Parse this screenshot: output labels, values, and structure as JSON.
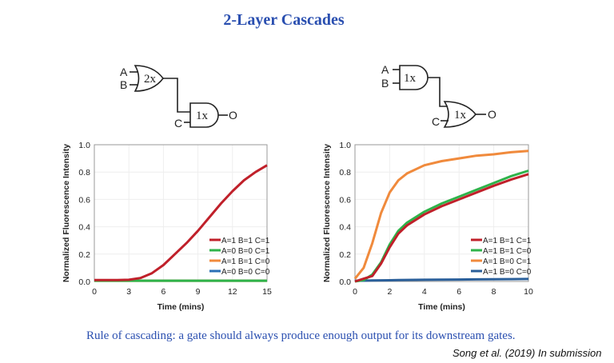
{
  "title": "2-Layer Cascades",
  "caption": "Rule of cascading: a gate should always produce enough output for its downstream gates.",
  "citation": "Song et al. (2019) In submission",
  "circuits": [
    {
      "gate1": {
        "type": "OR",
        "label": "2x",
        "inputs": [
          "A",
          "B"
        ]
      },
      "gate2": {
        "type": "AND",
        "label": "1x",
        "input": "C"
      },
      "output": "O"
    },
    {
      "gate1": {
        "type": "AND",
        "label": "1x",
        "inputs": [
          "A",
          "B"
        ]
      },
      "gate2": {
        "type": "OR",
        "label": "1x",
        "input": "C"
      },
      "output": "O"
    }
  ],
  "chart_data": [
    {
      "type": "line",
      "xlabel": "Time (mins)",
      "ylabel": "Normalized Fluorescence Intensity",
      "xlim": [
        0,
        15
      ],
      "ylim": [
        0,
        1
      ],
      "xticks": [
        "0",
        "3",
        "6",
        "9",
        "12",
        "15"
      ],
      "yticks": [
        "0.0",
        "0.2",
        "0.4",
        "0.6",
        "0.8",
        "1.0"
      ],
      "grid": true,
      "legend": "bottom-right",
      "x": [
        0,
        1,
        2,
        3,
        4,
        5,
        6,
        7,
        8,
        9,
        10,
        11,
        12,
        13,
        14,
        15
      ],
      "series": [
        {
          "name": "A=1 B=1 C=1",
          "color": "#c0202a",
          "values": [
            0.01,
            0.01,
            0.01,
            0.012,
            0.025,
            0.06,
            0.12,
            0.2,
            0.28,
            0.37,
            0.47,
            0.57,
            0.66,
            0.74,
            0.8,
            0.85
          ]
        },
        {
          "name": "A=0 B=0 C=1",
          "color": "#2eb34a",
          "values": [
            0.005,
            0.005,
            0.005,
            0.005,
            0.005,
            0.005,
            0.005,
            0.005,
            0.005,
            0.005,
            0.005,
            0.005,
            0.005,
            0.005,
            0.005,
            0.005
          ]
        },
        {
          "name": "A=1 B=1 C=0",
          "color": "#f08a3c",
          "values": [
            0.005,
            0.005,
            0.005,
            0.005,
            0.005,
            0.005,
            0.005,
            0.005,
            0.005,
            0.005,
            0.005,
            0.005,
            0.005,
            0.005,
            0.005,
            0.005
          ]
        },
        {
          "name": "A=0 B=0 C=0",
          "color": "#2a6fb5",
          "values": [
            0.006,
            0.006,
            0.006,
            0.006,
            0.006,
            0.006,
            0.006,
            0.006,
            0.006,
            0.006,
            0.006,
            0.006,
            0.006,
            0.006,
            0.006,
            0.006
          ]
        }
      ]
    },
    {
      "type": "line",
      "xlabel": "Time (mins)",
      "ylabel": "Normalized Fluorescence Intensity",
      "xlim": [
        0,
        10
      ],
      "ylim": [
        0,
        1
      ],
      "xticks": [
        "0",
        "2",
        "4",
        "6",
        "8",
        "10"
      ],
      "yticks": [
        "0.0",
        "0.2",
        "0.4",
        "0.6",
        "0.8",
        "1.0"
      ],
      "grid": true,
      "legend": "bottom-right",
      "x": [
        0,
        0.5,
        1,
        1.5,
        2,
        2.5,
        3,
        4,
        5,
        6,
        7,
        8,
        9,
        10
      ],
      "series": [
        {
          "name": "A=1 B=1 C=1",
          "color": "#c0202a",
          "values": [
            0,
            0.02,
            0.04,
            0.13,
            0.25,
            0.35,
            0.41,
            0.49,
            0.55,
            0.6,
            0.65,
            0.7,
            0.745,
            0.785
          ]
        },
        {
          "name": "A=1 B=1 C=0",
          "color": "#2eb34a",
          "values": [
            0,
            0.01,
            0.05,
            0.14,
            0.27,
            0.37,
            0.43,
            0.51,
            0.57,
            0.62,
            0.67,
            0.72,
            0.77,
            0.81
          ]
        },
        {
          "name": "A=1 B=0 C=1",
          "color": "#f08a3c",
          "values": [
            0.02,
            0.1,
            0.28,
            0.5,
            0.65,
            0.74,
            0.79,
            0.85,
            0.88,
            0.9,
            0.92,
            0.93,
            0.945,
            0.955
          ]
        },
        {
          "name": "A=1 B=0 C=0",
          "color": "#2a5f9a",
          "values": [
            0.005,
            0.006,
            0.007,
            0.008,
            0.009,
            0.01,
            0.011,
            0.012,
            0.013,
            0.014,
            0.015,
            0.016,
            0.017,
            0.018
          ]
        }
      ]
    }
  ]
}
